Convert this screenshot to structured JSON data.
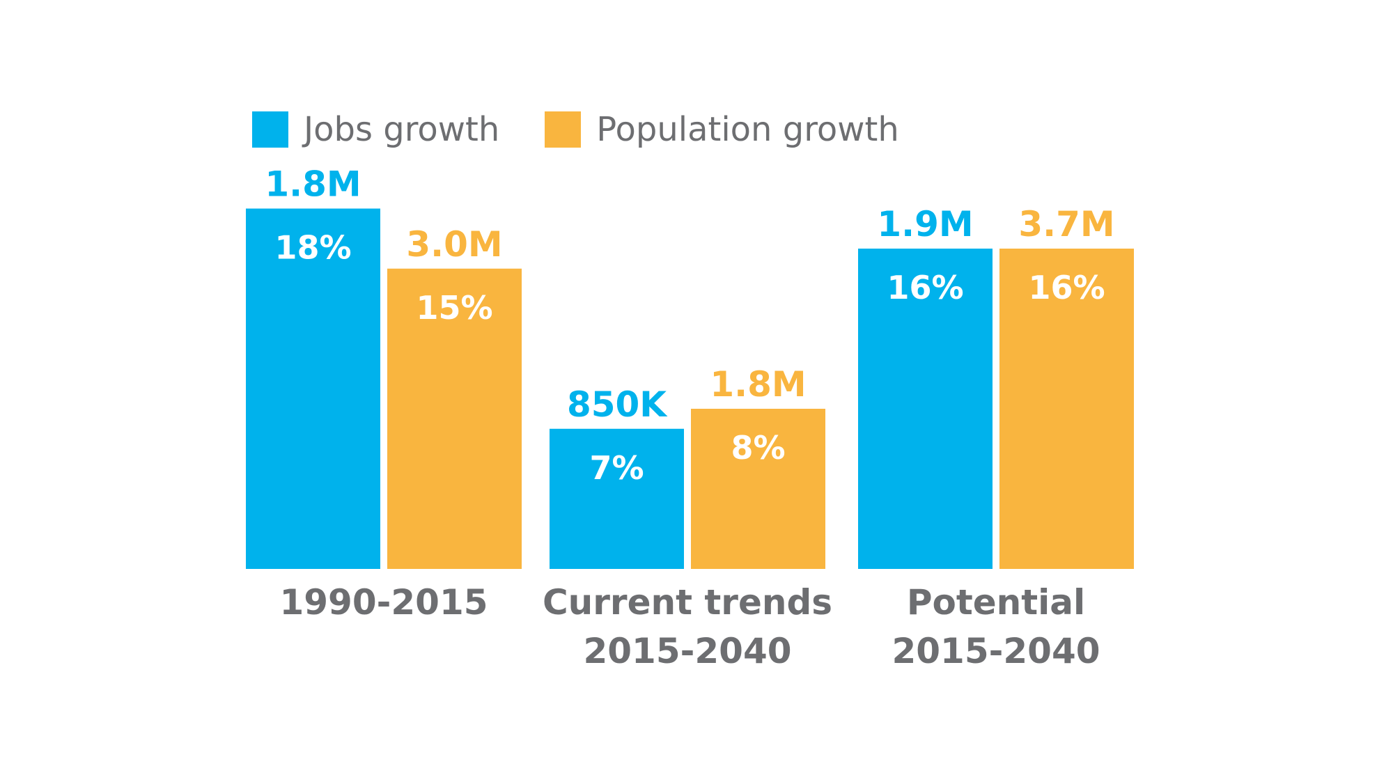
{
  "colors": {
    "jobs": "#00b2ec",
    "population": "#f9b53f",
    "text": "#6d6e71",
    "label_inside": "#ffffff"
  },
  "legend": [
    {
      "label": "Jobs growth",
      "color": "#00b2ec"
    },
    {
      "label": "Population growth",
      "color": "#f9b53f"
    }
  ],
  "chart_data": {
    "type": "bar",
    "categories": [
      [
        "1990-2015"
      ],
      [
        "Current trends",
        "2015-2040"
      ],
      [
        "Potential",
        "2015-2040"
      ]
    ],
    "series": [
      {
        "name": "Jobs growth",
        "values": [
          18,
          7,
          16
        ],
        "value_labels": [
          "1.8M",
          "850K",
          "1.9M"
        ],
        "percent_labels": [
          "18%",
          "7%",
          "16%"
        ]
      },
      {
        "name": "Population growth",
        "values": [
          15,
          8,
          16
        ],
        "value_labels": [
          "3.0M",
          "1.8M",
          "3.7M"
        ],
        "percent_labels": [
          "15%",
          "8%",
          "16%"
        ]
      }
    ],
    "title": "",
    "xlabel": "",
    "ylabel": "",
    "grid": false,
    "legend_position": "top-left"
  }
}
